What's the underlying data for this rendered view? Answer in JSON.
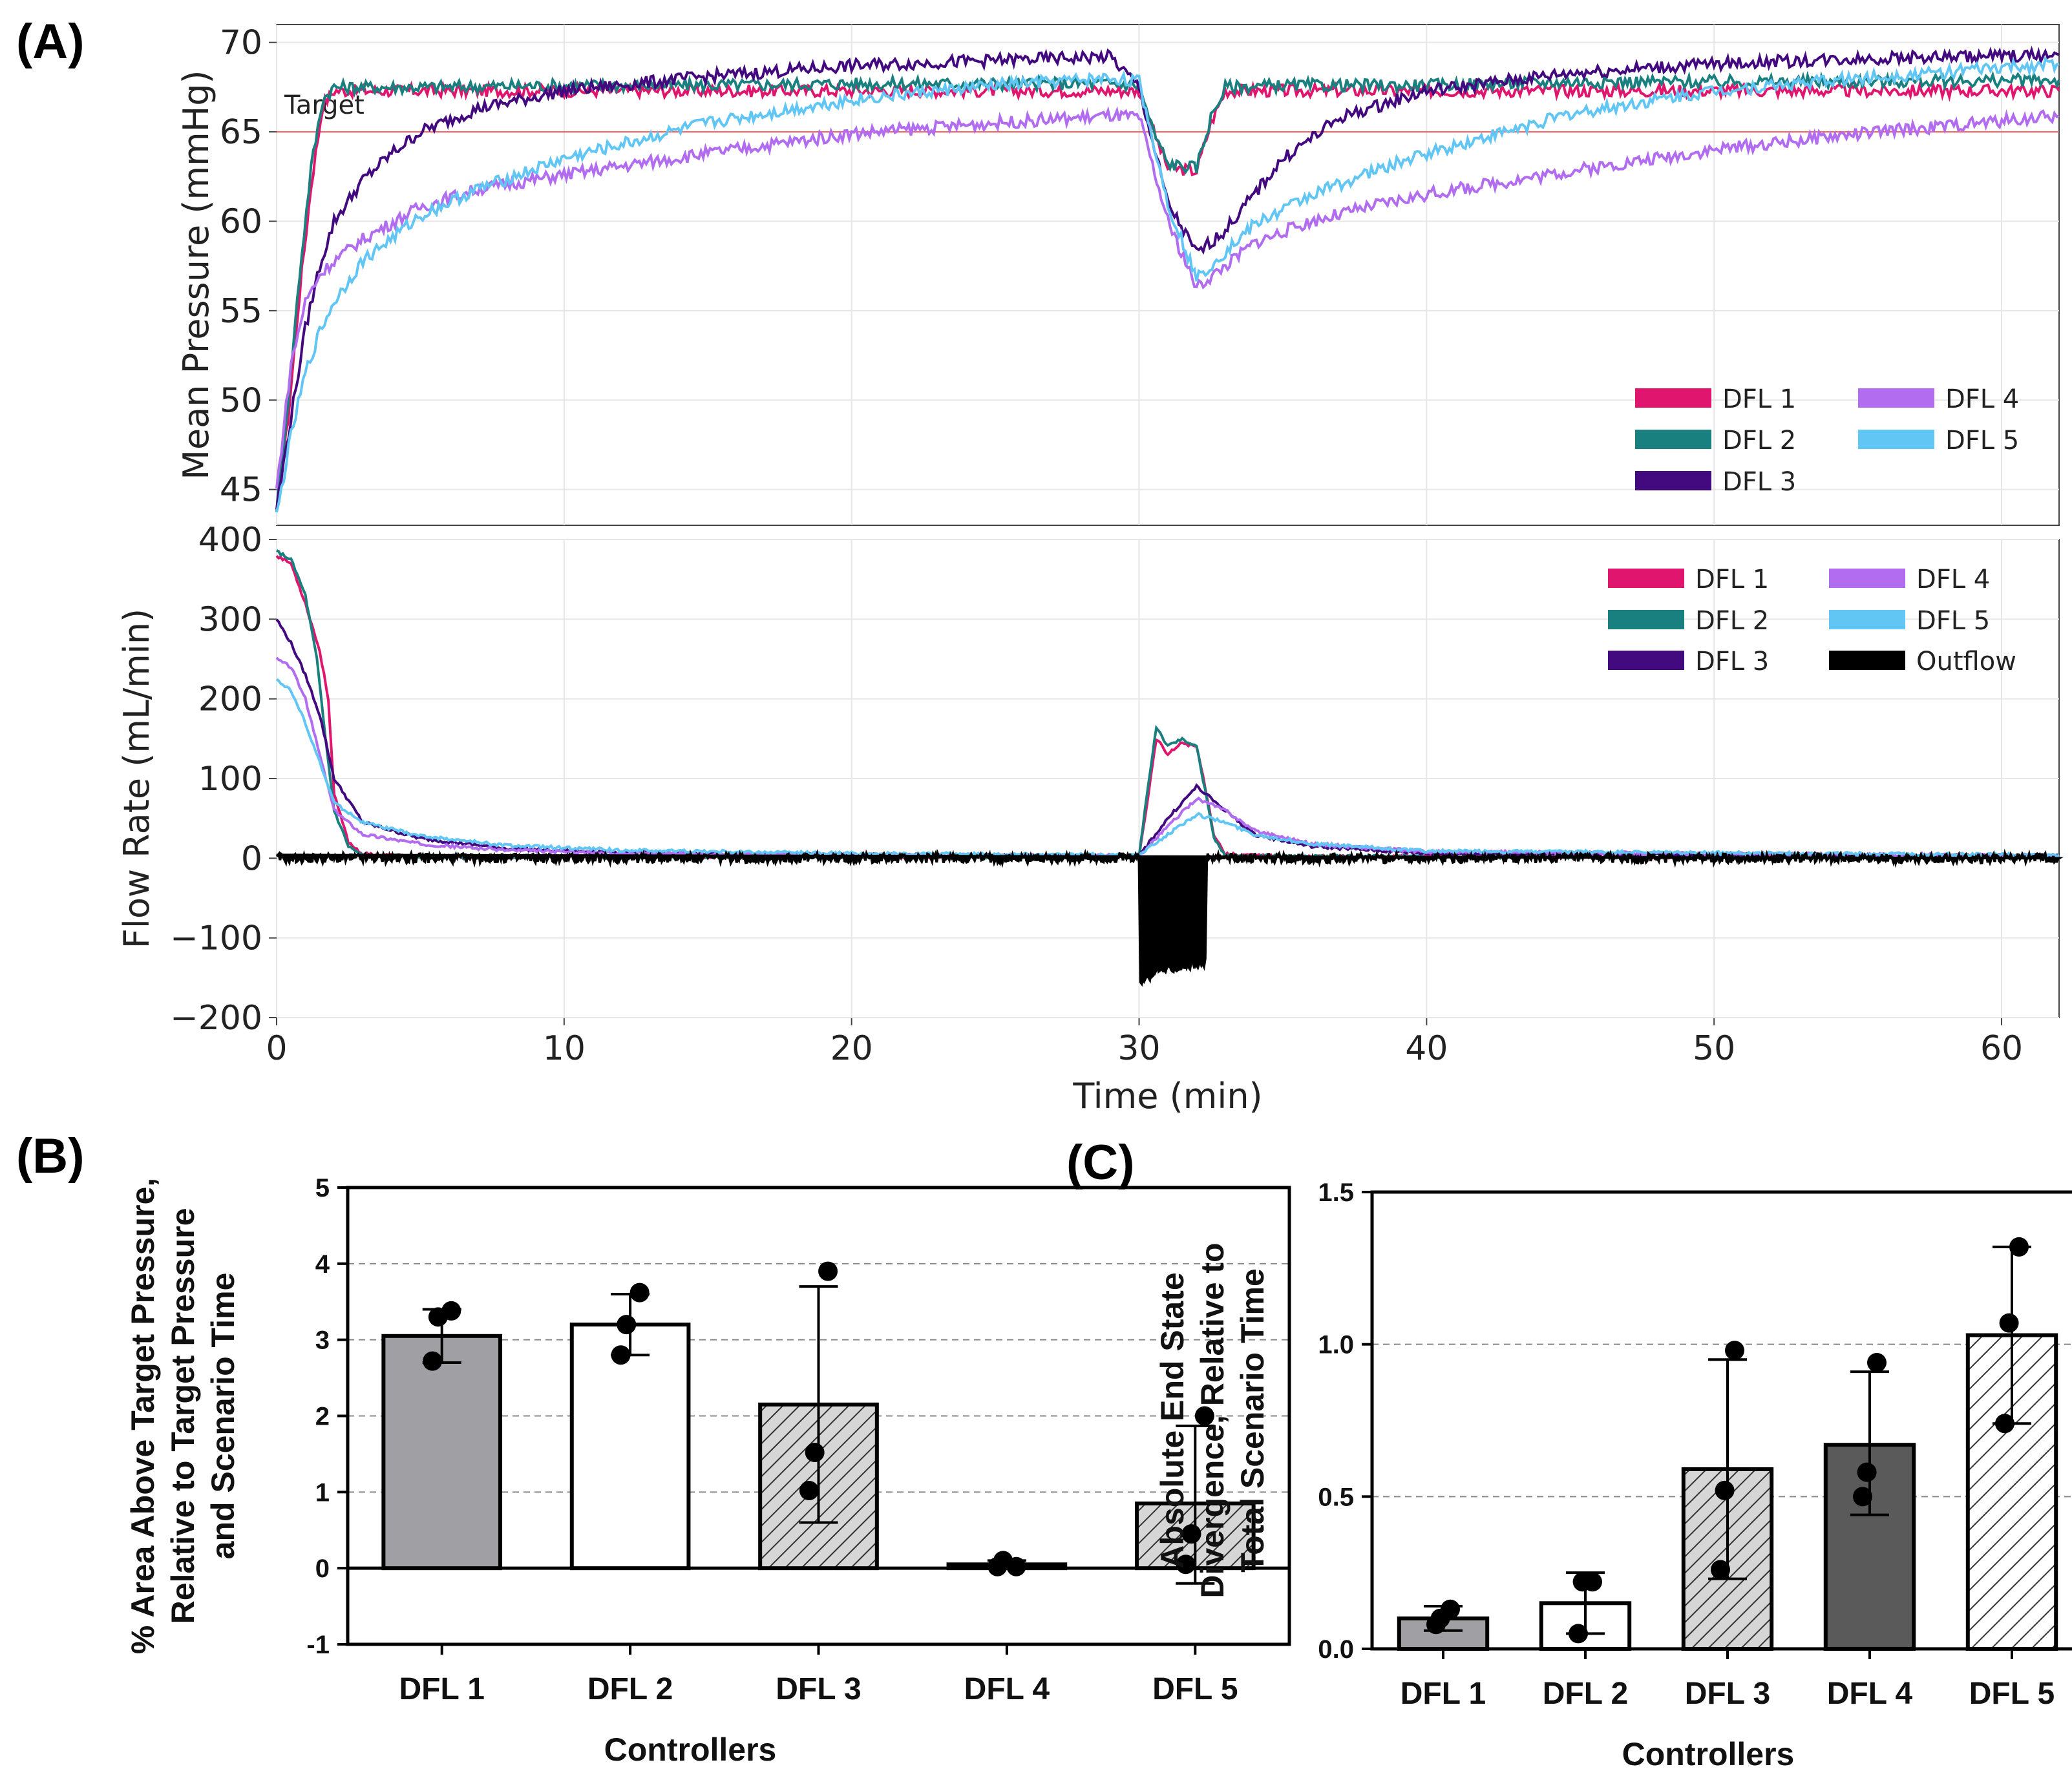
{
  "panels": {
    "a_label": "(A)",
    "b_label": "(B)",
    "c_label": "(C)"
  },
  "colors": {
    "DFL 1": "#e0156d",
    "DFL 2": "#1a7f7f",
    "DFL 3": "#43097f",
    "DFL 4": "#b26cf0",
    "DFL 5": "#62c6f5",
    "Outflow": "#000000",
    "target": "#f25a5a"
  },
  "chart_data": [
    {
      "id": "A-top",
      "type": "line",
      "title": "",
      "xlabel": "",
      "ylabel": "Mean Pressure (mmHg)",
      "xlim": [
        0,
        62
      ],
      "ylim": [
        43,
        71
      ],
      "yticks": [
        "45",
        "50",
        "55",
        "60",
        "65",
        "70"
      ],
      "target": {
        "value": 65,
        "label": "Target"
      },
      "legend": [
        "DFL 1",
        "DFL 2",
        "DFL 3",
        "DFL 4",
        "DFL 5"
      ],
      "legend_position": "bottom-right",
      "series": [
        {
          "name": "DFL 1",
          "x": [
            0,
            0.4,
            0.8,
            1.2,
            1.6,
            2,
            5,
            10,
            15,
            20,
            25,
            29,
            30,
            30.5,
            31,
            32,
            32.5,
            33,
            35,
            40,
            45,
            50,
            55,
            62
          ],
          "y": [
            43.5,
            49,
            56,
            62,
            66.5,
            67.3,
            67.3,
            67.3,
            67.3,
            67.3,
            67.3,
            67.3,
            67.3,
            65,
            63,
            62.8,
            65.5,
            67.3,
            67.3,
            67.3,
            67.3,
            67.3,
            67.3,
            67.3
          ]
        },
        {
          "name": "DFL 2",
          "x": [
            0,
            0.4,
            0.8,
            1.2,
            1.6,
            2,
            5,
            10,
            15,
            20,
            25,
            29,
            30,
            30.5,
            31,
            32,
            32.5,
            33,
            35,
            40,
            45,
            50,
            55,
            62
          ],
          "y": [
            44,
            50,
            57,
            63,
            66.8,
            67.5,
            67.5,
            67.6,
            67.6,
            67.7,
            67.7,
            67.7,
            67.6,
            65,
            63.2,
            63,
            65.8,
            67.5,
            67.6,
            67.6,
            67.8,
            67.8,
            67.8,
            67.9
          ]
        },
        {
          "name": "DFL 3",
          "x": [
            0,
            0.5,
            1,
            1.5,
            2,
            3,
            4,
            5,
            7,
            10,
            15,
            20,
            25,
            29,
            30,
            31,
            32,
            33,
            34,
            35,
            37,
            40,
            45,
            50,
            55,
            62
          ],
          "y": [
            44,
            49,
            54,
            57.5,
            60,
            62.3,
            63.8,
            65,
            66.3,
            67.3,
            68.1,
            68.7,
            69,
            69.2,
            67.5,
            61,
            58.2,
            59.5,
            61.5,
            63.5,
            65.8,
            67.3,
            68.3,
            68.8,
            69.1,
            69.3
          ]
        },
        {
          "name": "DFL 4",
          "x": [
            0,
            0.5,
            1,
            1.5,
            2,
            3,
            5,
            7,
            10,
            15,
            20,
            25,
            29,
            30,
            31,
            32,
            33,
            34,
            36,
            38,
            40,
            45,
            50,
            55,
            62
          ],
          "y": [
            45,
            52,
            55.5,
            57,
            57.8,
            59,
            60.8,
            61.8,
            62.6,
            63.8,
            64.9,
            65.5,
            65.9,
            65.8,
            60,
            56.3,
            57.5,
            58.8,
            60,
            60.8,
            61.5,
            62.8,
            64,
            64.9,
            65.9
          ]
        },
        {
          "name": "DFL 5",
          "x": [
            0,
            0.5,
            1,
            1.5,
            2,
            3,
            5,
            7,
            10,
            15,
            20,
            25,
            29,
            30,
            31,
            32,
            33,
            34,
            36,
            38,
            40,
            45,
            50,
            55,
            62
          ],
          "y": [
            43.5,
            48,
            51.5,
            53.8,
            55.5,
            57.8,
            60.3,
            61.8,
            63.5,
            65.5,
            66.8,
            67.6,
            68,
            67.8,
            61,
            56.8,
            58.3,
            59.8,
            61.5,
            62.7,
            63.8,
            66,
            67.3,
            68,
            68.8
          ]
        }
      ]
    },
    {
      "id": "A-bottom",
      "type": "line",
      "title": "",
      "xlabel": "Time (min)",
      "ylabel": "Flow Rate (mL/min)",
      "xlim": [
        0,
        62
      ],
      "ylim": [
        -200,
        400
      ],
      "yticks": [
        "−200",
        "−100",
        "0",
        "100",
        "200",
        "300",
        "400"
      ],
      "xticks": [
        "0",
        "10",
        "20",
        "30",
        "40",
        "50",
        "60"
      ],
      "legend": [
        "DFL 1",
        "DFL 2",
        "DFL 3",
        "DFL 4",
        "DFL 5",
        "Outflow"
      ],
      "legend_position": "top-right",
      "series": [
        {
          "name": "DFL 1",
          "x": [
            0,
            0.5,
            1,
            1.5,
            1.8,
            2,
            2.5,
            3,
            5,
            30,
            30.2,
            30.6,
            31,
            31.5,
            32,
            32.3,
            32.6,
            33,
            35,
            62
          ],
          "y": [
            380,
            370,
            320,
            260,
            200,
            80,
            20,
            5,
            2,
            2,
            50,
            150,
            130,
            145,
            140,
            90,
            30,
            5,
            2,
            2
          ]
        },
        {
          "name": "DFL 2",
          "x": [
            0,
            0.5,
            1,
            1.4,
            1.7,
            2,
            2.5,
            3,
            5,
            30,
            30.2,
            30.6,
            31,
            31.5,
            32,
            32.3,
            32.6,
            33,
            35,
            62
          ],
          "y": [
            385,
            375,
            330,
            250,
            150,
            60,
            15,
            3,
            2,
            2,
            60,
            165,
            140,
            150,
            140,
            85,
            25,
            3,
            2,
            2
          ]
        },
        {
          "name": "DFL 3",
          "x": [
            0,
            0.5,
            1,
            1.5,
            2,
            3,
            5,
            8,
            12,
            20,
            30,
            31,
            32,
            33,
            34,
            36,
            40,
            62
          ],
          "y": [
            300,
            270,
            230,
            180,
            100,
            45,
            25,
            12,
            7,
            4,
            3,
            50,
            90,
            60,
            30,
            15,
            6,
            3
          ]
        },
        {
          "name": "DFL 4",
          "x": [
            0,
            0.5,
            1,
            1.5,
            2,
            3,
            5,
            8,
            12,
            20,
            30,
            31,
            32,
            33,
            34,
            36,
            40,
            62
          ],
          "y": [
            250,
            240,
            200,
            130,
            60,
            30,
            18,
            10,
            6,
            4,
            3,
            40,
            75,
            60,
            35,
            18,
            8,
            3
          ]
        },
        {
          "name": "DFL 5",
          "x": [
            0,
            0.5,
            1,
            1.5,
            2,
            3,
            5,
            8,
            12,
            20,
            30,
            31,
            32,
            33,
            34,
            36,
            40,
            62
          ],
          "y": [
            225,
            210,
            170,
            120,
            70,
            45,
            28,
            16,
            10,
            6,
            4,
            30,
            55,
            45,
            30,
            18,
            9,
            4
          ]
        },
        {
          "name": "Outflow",
          "x": [
            0,
            30,
            30.05,
            30.3,
            30.6,
            31,
            31.5,
            32,
            32.3,
            32.35,
            62
          ],
          "y": [
            0,
            0,
            -155,
            -150,
            -140,
            -138,
            -135,
            -135,
            -132,
            0,
            0
          ]
        }
      ]
    },
    {
      "id": "B",
      "type": "bar",
      "title": "",
      "xlabel": "Controllers",
      "ylabel_lines": [
        "% Area Above Target Pressure,",
        "Relative to Target Pressure",
        "and Scenario Time"
      ],
      "ylim": [
        -1,
        5
      ],
      "yticks": [
        "-1",
        "0",
        "1",
        "2",
        "3",
        "4",
        "5"
      ],
      "categories": [
        "DFL 1",
        "DFL 2",
        "DFL 3",
        "DFL 4",
        "DFL 5"
      ],
      "values": [
        3.05,
        3.2,
        2.15,
        0.05,
        0.85
      ],
      "error_low": [
        2.7,
        2.8,
        0.6,
        0.0,
        -0.2
      ],
      "error_high": [
        3.4,
        3.6,
        3.7,
        0.1,
        1.87
      ],
      "points": [
        [
          3.38,
          3.3,
          2.72
        ],
        [
          3.62,
          3.2,
          2.8
        ],
        [
          3.9,
          1.52,
          1.02
        ],
        [
          0.02,
          0.1,
          0.02
        ],
        [
          2.0,
          0.45,
          0.05
        ]
      ],
      "fills": [
        "#a0a0a4",
        "#ffffff",
        "hatch",
        "#ffffff",
        "hatch"
      ]
    },
    {
      "id": "C",
      "type": "bar",
      "title": "",
      "xlabel": "Controllers",
      "ylabel_lines": [
        "Absolute End State",
        "Divergence, Relative to",
        "Total Scenario Time"
      ],
      "ylim": [
        0,
        1.5
      ],
      "yticks": [
        "0.0",
        "0.5",
        "1.0",
        "1.5"
      ],
      "categories": [
        "DFL 1",
        "DFL 2",
        "DFL 3",
        "DFL 4",
        "DFL 5"
      ],
      "values": [
        0.1,
        0.15,
        0.59,
        0.67,
        1.03
      ],
      "error_low": [
        0.06,
        0.05,
        0.23,
        0.44,
        0.74
      ],
      "error_high": [
        0.14,
        0.25,
        0.95,
        0.91,
        1.32
      ],
      "points": [
        [
          0.13,
          0.1,
          0.08
        ],
        [
          0.22,
          0.22,
          0.05
        ],
        [
          0.98,
          0.52,
          0.26
        ],
        [
          0.94,
          0.58,
          0.5
        ],
        [
          1.32,
          1.07,
          0.74
        ]
      ],
      "fills": [
        "#a0a0a4",
        "#ffffff",
        "hatch",
        "#5a5a5a",
        "hatch-white"
      ]
    }
  ]
}
